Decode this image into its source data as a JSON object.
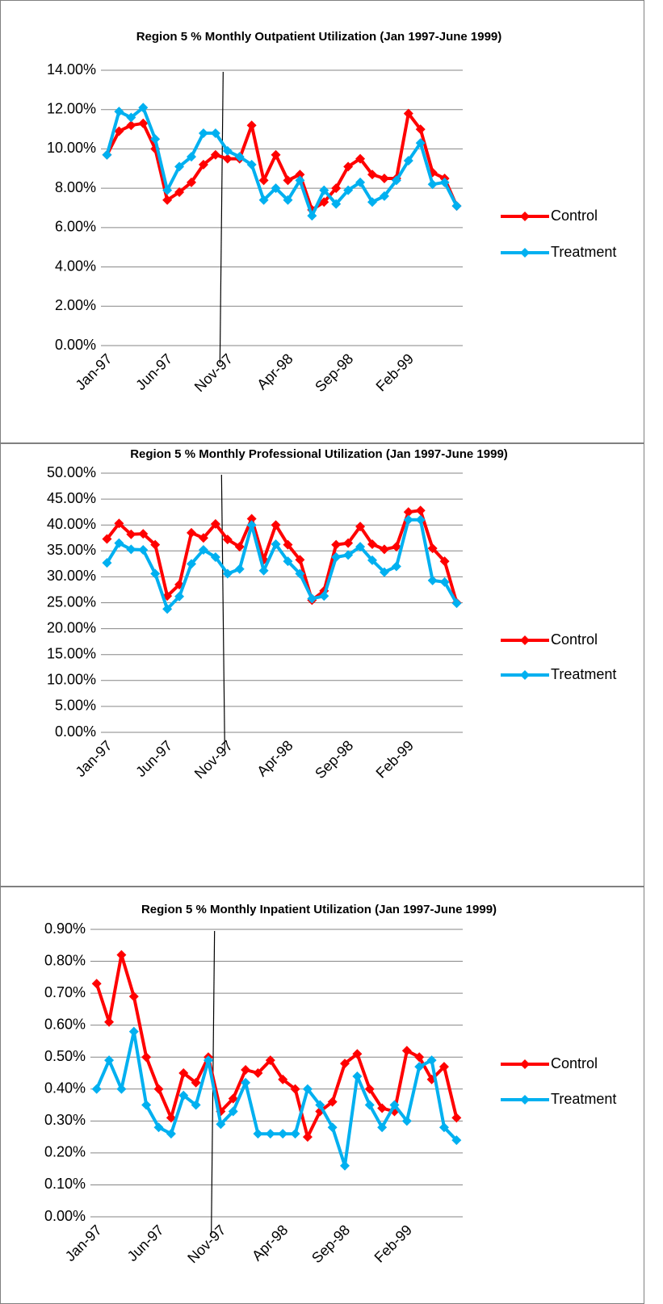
{
  "chart_data": [
    {
      "type": "line",
      "title": "Region 5 % Monthly Outpatient Utilization (Jan 1997-June 1999)",
      "categories": [
        "Jan-97",
        null,
        null,
        null,
        null,
        "Jun-97",
        null,
        null,
        null,
        null,
        "Nov-97",
        null,
        null,
        null,
        null,
        "Apr-98",
        null,
        null,
        null,
        null,
        "Sep-98",
        null,
        null,
        null,
        null,
        "Feb-99",
        null,
        null,
        null,
        null
      ],
      "series": [
        {
          "name": "Control",
          "color": "#ff0000",
          "values": [
            9.7,
            10.9,
            11.2,
            11.3,
            10.0,
            7.4,
            7.8,
            8.3,
            9.2,
            9.7,
            9.5,
            9.5,
            11.2,
            8.4,
            9.7,
            8.4,
            8.7,
            6.9,
            7.3,
            8.0,
            9.1,
            9.5,
            8.7,
            8.5,
            8.5,
            11.8,
            11.0,
            8.8,
            8.5,
            7.1
          ]
        },
        {
          "name": "Treatment",
          "color": "#00b0f0",
          "values": [
            9.7,
            11.9,
            11.6,
            12.1,
            10.5,
            7.9,
            9.1,
            9.6,
            10.8,
            10.8,
            9.9,
            9.6,
            9.2,
            7.4,
            8.0,
            7.4,
            8.4,
            6.6,
            7.9,
            7.2,
            7.9,
            8.3,
            7.3,
            7.6,
            8.4,
            9.4,
            10.3,
            8.2,
            8.3,
            7.1
          ]
        }
      ],
      "ylim": [
        0,
        14
      ],
      "yticks": [
        {
          "value": 0,
          "label": "0.00%"
        },
        {
          "value": 2,
          "label": "2.00%"
        },
        {
          "value": 4,
          "label": "4.00%"
        },
        {
          "value": 6,
          "label": "6.00%"
        },
        {
          "value": 8,
          "label": "8.00%"
        },
        {
          "value": 10,
          "label": "10.00%"
        },
        {
          "value": 12,
          "label": "12.00%"
        },
        {
          "value": 14,
          "label": "14.00%"
        }
      ],
      "grid": true,
      "legend": "right"
    },
    {
      "type": "line",
      "title": "Region 5 % Monthly Professional Utilization (Jan 1997-June 1999)",
      "categories": [
        "Jan-97",
        null,
        null,
        null,
        null,
        "Jun-97",
        null,
        null,
        null,
        null,
        "Nov-97",
        null,
        null,
        null,
        null,
        "Apr-98",
        null,
        null,
        null,
        null,
        "Sep-98",
        null,
        null,
        null,
        null,
        "Feb-99",
        null,
        null,
        null,
        null
      ],
      "series": [
        {
          "name": "Control",
          "color": "#ff0000",
          "values": [
            37.3,
            40.3,
            38.2,
            38.3,
            36.2,
            26.3,
            28.5,
            38.5,
            37.5,
            40.2,
            37.2,
            35.8,
            41.2,
            33.3,
            40.0,
            36.2,
            33.3,
            25.5,
            27.3,
            36.2,
            36.5,
            39.7,
            36.3,
            35.3,
            35.8,
            42.5,
            42.8,
            35.5,
            33.0,
            25.0
          ]
        },
        {
          "name": "Treatment",
          "color": "#00b0f0",
          "values": [
            32.7,
            36.5,
            35.3,
            35.2,
            30.6,
            23.8,
            26.2,
            32.5,
            35.2,
            33.8,
            30.6,
            31.5,
            40.0,
            31.2,
            36.3,
            33.0,
            30.6,
            25.8,
            26.3,
            33.8,
            34.2,
            35.8,
            33.2,
            30.9,
            32.0,
            41.0,
            41.0,
            29.3,
            29.0,
            24.9
          ]
        }
      ],
      "ylim": [
        0,
        50
      ],
      "yticks": [
        {
          "value": 0,
          "label": "0.00%"
        },
        {
          "value": 5,
          "label": "5.00%"
        },
        {
          "value": 10,
          "label": "10.00%"
        },
        {
          "value": 15,
          "label": "15.00%"
        },
        {
          "value": 20,
          "label": "20.00%"
        },
        {
          "value": 25,
          "label": "25.00%"
        },
        {
          "value": 30,
          "label": "30.00%"
        },
        {
          "value": 35,
          "label": "35.00%"
        },
        {
          "value": 40,
          "label": "40.00%"
        },
        {
          "value": 45,
          "label": "45.00%"
        },
        {
          "value": 50,
          "label": "50.00%"
        }
      ],
      "grid": true,
      "legend": "right"
    },
    {
      "type": "line",
      "title": "Region 5 % Monthly Inpatient Utilization (Jan 1997-June 1999)",
      "categories": [
        "Jan-97",
        null,
        null,
        null,
        null,
        "Jun-97",
        null,
        null,
        null,
        null,
        "Nov-97",
        null,
        null,
        null,
        null,
        "Apr-98",
        null,
        null,
        null,
        null,
        "Sep-98",
        null,
        null,
        null,
        null,
        "Feb-99",
        null,
        null,
        null,
        null
      ],
      "series": [
        {
          "name": "Control",
          "color": "#ff0000",
          "values": [
            0.73,
            0.61,
            0.82,
            0.69,
            0.5,
            0.4,
            0.31,
            0.45,
            0.42,
            0.5,
            0.33,
            0.37,
            0.46,
            0.45,
            0.49,
            0.43,
            0.4,
            0.25,
            0.33,
            0.36,
            0.48,
            0.51,
            0.4,
            0.34,
            0.33,
            0.52,
            0.5,
            0.43,
            0.47,
            0.31
          ]
        },
        {
          "name": "Treatment",
          "color": "#00b0f0",
          "values": [
            0.4,
            0.49,
            0.4,
            0.58,
            0.35,
            0.28,
            0.26,
            0.38,
            0.35,
            0.49,
            0.29,
            0.33,
            0.42,
            0.26,
            0.26,
            0.26,
            0.26,
            0.4,
            0.35,
            0.28,
            0.16,
            0.44,
            0.35,
            0.28,
            0.35,
            0.3,
            0.47,
            0.49,
            0.28,
            0.24
          ]
        }
      ],
      "ylim": [
        0,
        0.9
      ],
      "yticks": [
        {
          "value": 0,
          "label": "0.00%"
        },
        {
          "value": 0.1,
          "label": "0.10%"
        },
        {
          "value": 0.2,
          "label": "0.20%"
        },
        {
          "value": 0.3,
          "label": "0.30%"
        },
        {
          "value": 0.4,
          "label": "0.40%"
        },
        {
          "value": 0.5,
          "label": "0.50%"
        },
        {
          "value": 0.6,
          "label": "0.60%"
        },
        {
          "value": 0.7,
          "label": "0.70%"
        },
        {
          "value": 0.8,
          "label": "0.80%"
        },
        {
          "value": 0.9,
          "label": "0.90%"
        }
      ],
      "grid": true,
      "legend": "right"
    }
  ]
}
